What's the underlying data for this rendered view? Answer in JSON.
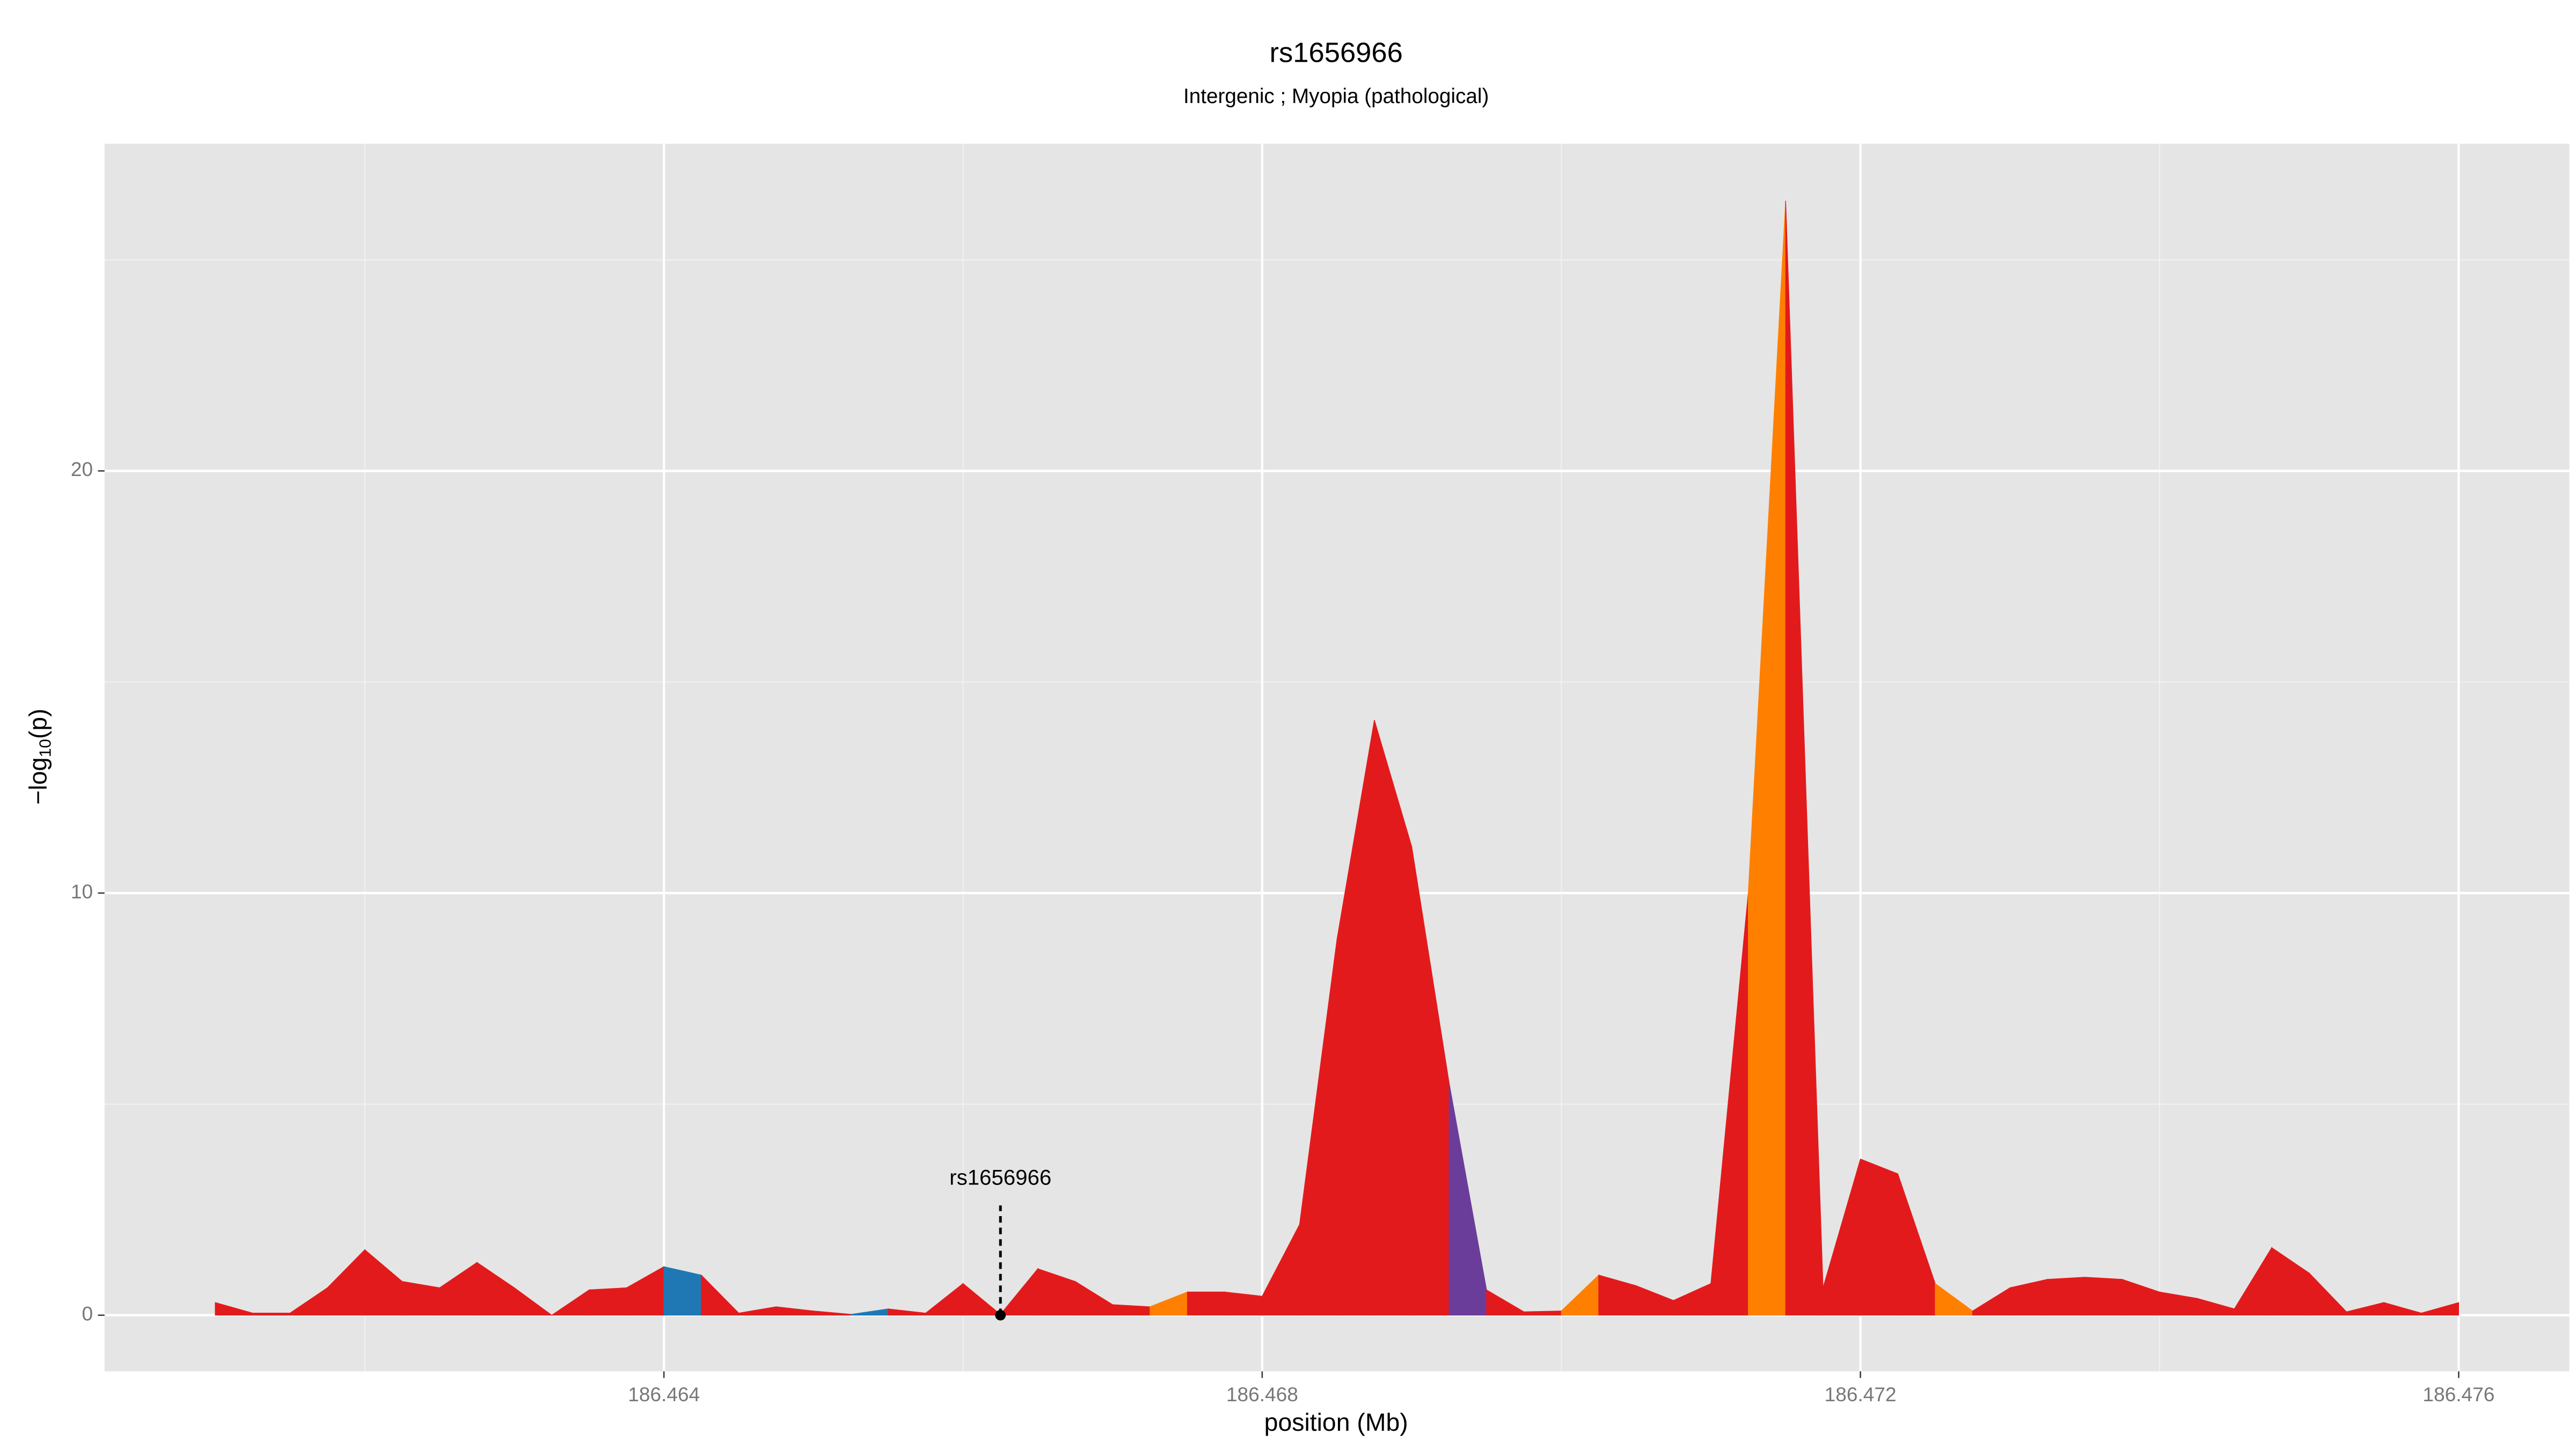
{
  "chart_data": {
    "type": "area",
    "title": "rs1656966",
    "subtitle": "Intergenic ; Myopia (pathological)",
    "x_label": "position (Mb)",
    "y_label": {
      "prefix": "−log",
      "subscript": "10",
      "suffix": "(p)"
    },
    "x": [
      186.461,
      186.46125,
      186.4615,
      186.46175,
      186.462,
      186.46225,
      186.4625,
      186.46275,
      186.463,
      186.46325,
      186.4635,
      186.46375,
      186.464,
      186.46425,
      186.4645,
      186.46475,
      186.465,
      186.46525,
      186.4655,
      186.46575,
      186.466,
      186.46625,
      186.4665,
      186.46675,
      186.467,
      186.46725,
      186.4675,
      186.46775,
      186.468,
      186.46825,
      186.4685,
      186.46875,
      186.469,
      186.46925,
      186.4695,
      186.46975,
      186.47,
      186.47025,
      186.4705,
      186.47075,
      186.471,
      186.47125,
      186.4715,
      186.47175,
      186.472,
      186.47225,
      186.4725,
      186.47275,
      186.473,
      186.47325,
      186.4735,
      186.47375,
      186.474,
      186.47425,
      186.4745,
      186.47475,
      186.475,
      186.47525,
      186.4755,
      186.47575,
      186.476
    ],
    "values": [
      0.3,
      0.05,
      0.05,
      0.65,
      1.55,
      0.8,
      0.65,
      1.25,
      0.65,
      0,
      0.6,
      0.65,
      1.15,
      0.95,
      0.05,
      0.2,
      0.1,
      0.02,
      0.15,
      0.05,
      0.75,
      0.02,
      1.1,
      0.8,
      0.25,
      0.2,
      0.55,
      0.55,
      0.45,
      2.15,
      8.9,
      14.1,
      11.1,
      5.5,
      0.6,
      0.08,
      0.1,
      0.95,
      0.7,
      0.35,
      0.75,
      10,
      26.4,
      0.65,
      3.7,
      3.35,
      0.75,
      0.1,
      0.65,
      0.85,
      0.9,
      0.85,
      0.55,
      0.4,
      0.15,
      1.6,
      1.0,
      0.08,
      0.3,
      0.05,
      0.3
    ],
    "colors": [
      "#e31a1c",
      "#e31a1c",
      "#e31a1c",
      "#e31a1c",
      "#e31a1c",
      "#e31a1c",
      "#e31a1c",
      "#e31a1c",
      "#e31a1c",
      "#e31a1c",
      "#e31a1c",
      "#e31a1c",
      "#1f78b4",
      "#e31a1c",
      "#e31a1c",
      "#e31a1c",
      "#e31a1c",
      "#1f78b4",
      "#e31a1c",
      "#e31a1c",
      "#e31a1c",
      "#e31a1c",
      "#e31a1c",
      "#e31a1c",
      "#e31a1c",
      "#ff7f00",
      "#e31a1c",
      "#e31a1c",
      "#e31a1c",
      "#e31a1c",
      "#e31a1c",
      "#e31a1c",
      "#e31a1c",
      "#6a3d9a",
      "#e31a1c",
      "#e31a1c",
      "#ff7f00",
      "#e31a1c",
      "#e31a1c",
      "#e31a1c",
      "#e31a1c",
      "#ff7f00",
      "#e31a1c",
      "#e31a1c",
      "#e31a1c",
      "#e31a1c",
      "#ff7f00",
      "#e31a1c",
      "#e31a1c",
      "#e31a1c",
      "#e31a1c",
      "#e31a1c",
      "#e31a1c",
      "#e31a1c",
      "#e31a1c",
      "#e31a1c",
      "#e31a1c",
      "#e31a1c",
      "#e31a1c",
      "#e31a1c",
      "#e31a1c"
    ],
    "annotation": {
      "label": "rs1656966",
      "x": 186.46625,
      "y": 0,
      "line_top": 2.6
    },
    "xlim": [
      186.46026,
      186.47674
    ],
    "ylim": [
      -1.33,
      27.75
    ],
    "xticks": [
      186.464,
      186.468,
      186.472,
      186.476
    ],
    "yticks": [
      0,
      10,
      20
    ],
    "minor_xticks": [
      186.462,
      186.466,
      186.47,
      186.474
    ],
    "minor_yticks": [
      5,
      15,
      25
    ],
    "grid": true
  }
}
